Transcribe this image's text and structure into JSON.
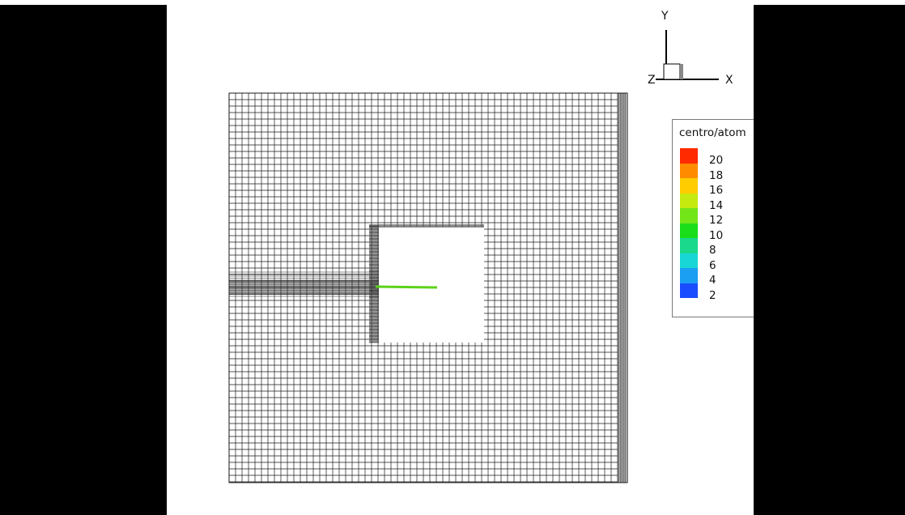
{
  "legend": {
    "title": "centro/atom",
    "levels": [
      {
        "label": "20",
        "color": "#ff2a00"
      },
      {
        "label": "18",
        "color": "#ff8c00"
      },
      {
        "label": "16",
        "color": "#ffcc00"
      },
      {
        "label": "14",
        "color": "#c4ea10"
      },
      {
        "label": "12",
        "color": "#73e61a"
      },
      {
        "label": "10",
        "color": "#1bde1b"
      },
      {
        "label": "8",
        "color": "#1ad88c"
      },
      {
        "label": "6",
        "color": "#19d6d6"
      },
      {
        "label": "4",
        "color": "#1a9ff2"
      },
      {
        "label": "2",
        "color": "#1a4dff"
      }
    ]
  },
  "axes": {
    "y": "Y",
    "z": "Z",
    "x": "X"
  },
  "colors": {
    "mesh": "#1a1a1a",
    "crack": "#5cd21a",
    "background": "#ffffff",
    "letterbox": "#000000"
  }
}
